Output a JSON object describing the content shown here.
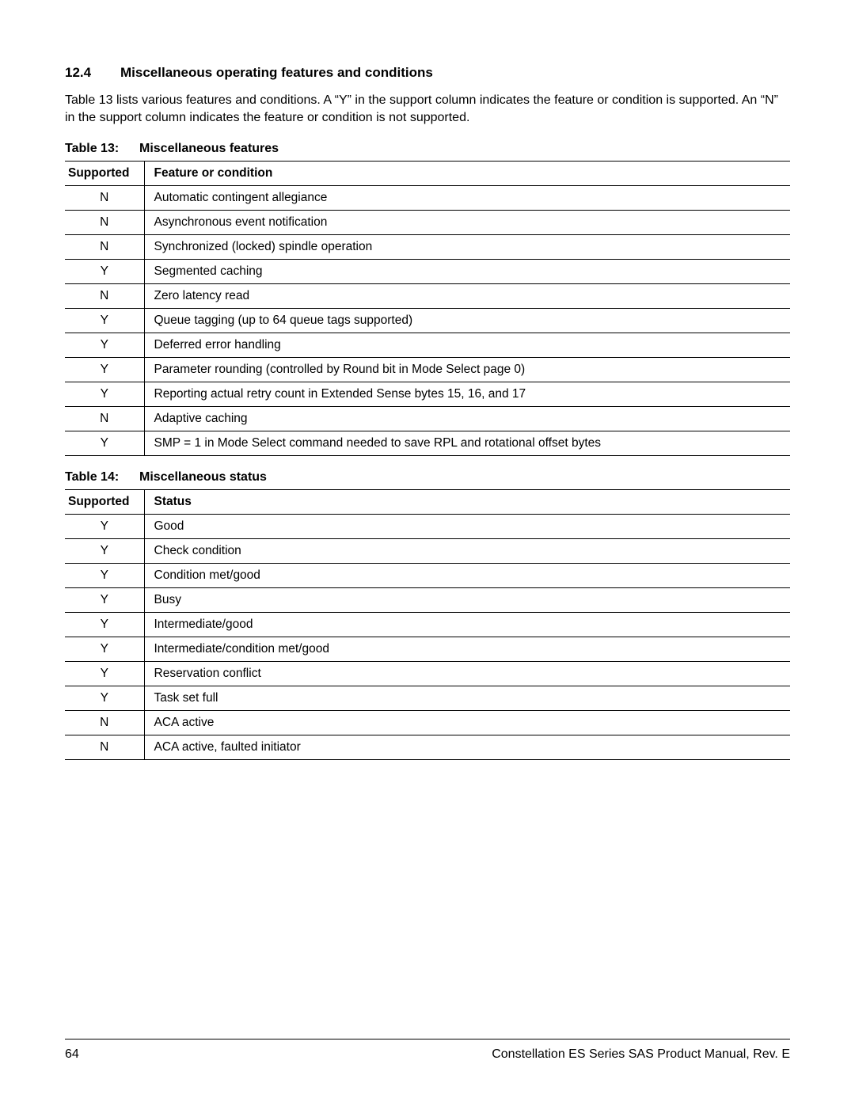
{
  "section": {
    "number": "12.4",
    "title": "Miscellaneous operating features and conditions"
  },
  "intro": "Table 13 lists various features and conditions. A “Y” in the support column indicates the feature or condition is supported. An “N” in the support column indicates the feature or condition is not supported.",
  "table13": {
    "caption_label": "Table 13:",
    "caption_title": "Miscellaneous features",
    "header_supported": "Supported",
    "header_feature": "Feature or condition",
    "rows": [
      {
        "supported": "N",
        "feature": "Automatic contingent allegiance"
      },
      {
        "supported": "N",
        "feature": "Asynchronous event notification"
      },
      {
        "supported": "N",
        "feature": "Synchronized (locked) spindle operation"
      },
      {
        "supported": "Y",
        "feature": "Segmented caching"
      },
      {
        "supported": "N",
        "feature": "Zero latency read"
      },
      {
        "supported": "Y",
        "feature": "Queue tagging (up to 64 queue tags supported)"
      },
      {
        "supported": "Y",
        "feature": "Deferred error handling"
      },
      {
        "supported": "Y",
        "feature": "Parameter rounding (controlled by Round bit in Mode Select page 0)"
      },
      {
        "supported": "Y",
        "feature": "Reporting actual retry count in Extended Sense bytes 15, 16, and 17"
      },
      {
        "supported": "N",
        "feature": "Adaptive caching"
      },
      {
        "supported": "Y",
        "feature": "SMP = 1 in Mode Select command needed to save RPL and rotational offset bytes"
      }
    ]
  },
  "table14": {
    "caption_label": "Table 14:",
    "caption_title": "Miscellaneous status",
    "header_supported": "Supported",
    "header_status": "Status",
    "rows": [
      {
        "supported": "Y",
        "status": "Good"
      },
      {
        "supported": "Y",
        "status": "Check condition"
      },
      {
        "supported": "Y",
        "status": "Condition met/good"
      },
      {
        "supported": "Y",
        "status": "Busy"
      },
      {
        "supported": "Y",
        "status": "Intermediate/good"
      },
      {
        "supported": "Y",
        "status": "Intermediate/condition met/good"
      },
      {
        "supported": "Y",
        "status": "Reservation conflict"
      },
      {
        "supported": "Y",
        "status": "Task set full"
      },
      {
        "supported": "N",
        "status": "ACA active"
      },
      {
        "supported": "N",
        "status": "ACA active, faulted initiator"
      }
    ]
  },
  "footer": {
    "page_number": "64",
    "doc_title": "Constellation ES Series SAS Product Manual, Rev. E"
  }
}
